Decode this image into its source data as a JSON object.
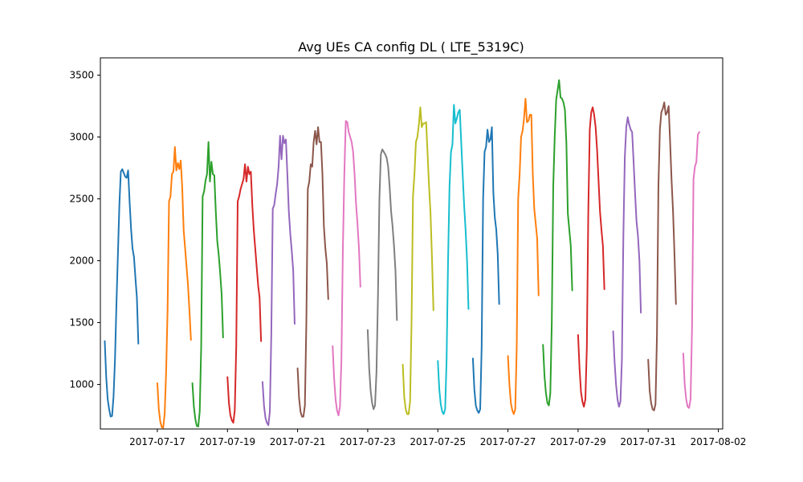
{
  "chart_data": {
    "type": "line",
    "title": "Avg UEs CA config DL ( LTE_5319C)",
    "xlabel": "",
    "ylabel": "",
    "xlim": [
      "2017-07-15T09:00",
      "2017-08-02T03:00"
    ],
    "ylim": [
      640,
      3640
    ],
    "grid": false,
    "x_ticks": [
      "2017-07-17",
      "2017-07-19",
      "2017-07-21",
      "2017-07-23",
      "2017-07-25",
      "2017-07-27",
      "2017-07-29",
      "2017-07-31",
      "2017-08-02"
    ],
    "y_ticks": [
      1000,
      1500,
      2000,
      2500,
      3000,
      3500
    ],
    "series": [
      {
        "color": "#1f77b4",
        "start": "2017-07-15T12:00",
        "values": [
          1350,
          1060,
          880,
          800,
          740,
          745,
          900,
          1200,
          1650,
          2050,
          2450,
          2720,
          2740,
          2710,
          2680,
          2670,
          2730,
          2480,
          2260,
          2100,
          2030,
          1860,
          1700,
          1330
        ]
      },
      {
        "color": "#ff7f0e",
        "start": "2017-07-17T00:00",
        "values": [
          1010,
          800,
          700,
          655,
          650,
          760,
          1100,
          1600,
          2480,
          2520,
          2700,
          2720,
          2920,
          2730,
          2790,
          2740,
          2810,
          2600,
          2250,
          2100,
          1950,
          1800,
          1590,
          1360
        ]
      },
      {
        "color": "#2ca02c",
        "start": "2017-07-18T00:00",
        "values": [
          1010,
          820,
          720,
          665,
          660,
          780,
          1300,
          2520,
          2560,
          2650,
          2700,
          2960,
          2640,
          2800,
          2700,
          2690,
          2400,
          2160,
          2050,
          1900,
          1730,
          1380
        ]
      },
      {
        "color": "#d62728",
        "start": "2017-07-19T00:00",
        "values": [
          1060,
          850,
          750,
          710,
          690,
          790,
          1300,
          2480,
          2520,
          2580,
          2620,
          2660,
          2780,
          2640,
          2760,
          2700,
          2720,
          2450,
          2250,
          2100,
          1950,
          1800,
          1700,
          1350
        ]
      },
      {
        "color": "#9467bd",
        "start": "2017-07-20T00:00",
        "values": [
          1020,
          830,
          730,
          690,
          670,
          780,
          1400,
          2420,
          2450,
          2540,
          2620,
          2760,
          3010,
          2820,
          3010,
          2950,
          2980,
          2700,
          2400,
          2220,
          2080,
          1920,
          1490
        ]
      },
      {
        "color": "#8c564b",
        "start": "2017-07-21T00:00",
        "values": [
          1130,
          890,
          780,
          740,
          740,
          830,
          1500,
          2580,
          2640,
          2780,
          2760,
          2960,
          3050,
          2940,
          3080,
          2960,
          2960,
          2700,
          2280,
          2100,
          1980,
          1690
        ]
      },
      {
        "color": "#e377c2",
        "start": "2017-07-22T00:00",
        "values": [
          1310,
          1050,
          880,
          790,
          750,
          820,
          1200,
          2100,
          2700,
          3130,
          3120,
          3040,
          3000,
          2960,
          2880,
          2700,
          2460,
          2300,
          2100,
          1790
        ]
      },
      {
        "color": "#7f7f7f",
        "start": "2017-07-23T00:00",
        "values": [
          1440,
          1130,
          950,
          850,
          800,
          830,
          1100,
          1700,
          2500,
          2860,
          2900,
          2880,
          2860,
          2830,
          2760,
          2600,
          2400,
          2280,
          2120,
          1920,
          1520
        ]
      },
      {
        "color": "#bcbd22",
        "start": "2017-07-24T00:00",
        "values": [
          1160,
          900,
          800,
          760,
          760,
          860,
          1500,
          2520,
          2700,
          2960,
          3000,
          3100,
          3240,
          3080,
          3110,
          3110,
          3120,
          2860,
          2600,
          2380,
          2020,
          1600
        ]
      },
      {
        "color": "#17becf",
        "start": "2017-07-25T00:00",
        "values": [
          1190,
          960,
          840,
          780,
          760,
          800,
          1200,
          2000,
          2600,
          2880,
          2940,
          3260,
          3110,
          3150,
          3200,
          3220,
          2960,
          2700,
          2450,
          2250,
          2000,
          1610
        ]
      },
      {
        "color": "#1f77b4",
        "start": "2017-07-26T00:00",
        "values": [
          1210,
          960,
          830,
          790,
          770,
          800,
          1300,
          2500,
          2880,
          2920,
          3060,
          2960,
          2980,
          3080,
          2550,
          2350,
          2250,
          2050,
          1650
        ]
      },
      {
        "color": "#ff7f0e",
        "start": "2017-07-27T00:00",
        "values": [
          1230,
          1000,
          850,
          790,
          760,
          800,
          1300,
          2500,
          2700,
          3000,
          3050,
          3150,
          3310,
          3120,
          3130,
          3180,
          3180,
          2700,
          2420,
          2300,
          2180,
          1720
        ]
      },
      {
        "color": "#2ca02c",
        "start": "2017-07-28T00:00",
        "values": [
          1320,
          1070,
          930,
          850,
          830,
          930,
          1500,
          2600,
          3000,
          3300,
          3380,
          3460,
          3320,
          3310,
          3280,
          3220,
          2950,
          2380,
          2250,
          2120,
          1760
        ]
      },
      {
        "color": "#d62728",
        "start": "2017-07-29T00:00",
        "values": [
          1400,
          1130,
          940,
          860,
          820,
          880,
          1300,
          2400,
          3060,
          3200,
          3240,
          3180,
          3080,
          2900,
          2650,
          2400,
          2250,
          2120,
          1770
        ]
      },
      {
        "color": "#9467bd",
        "start": "2017-07-30T00:00",
        "values": [
          1430,
          1180,
          1000,
          880,
          820,
          860,
          1200,
          2200,
          2840,
          3080,
          3160,
          3100,
          3060,
          3040,
          2800,
          2550,
          2320,
          2200,
          2000,
          1580
        ]
      },
      {
        "color": "#8c564b",
        "start": "2017-07-31T00:00",
        "values": [
          1200,
          950,
          850,
          800,
          790,
          840,
          1400,
          2600,
          3060,
          3200,
          3230,
          3280,
          3180,
          3200,
          3250,
          2960,
          2650,
          2400,
          2050,
          1650
        ]
      },
      {
        "color": "#e377c2",
        "start": "2017-08-01T00:00",
        "values": [
          1250,
          1000,
          880,
          820,
          810,
          880,
          1450,
          2660,
          2760,
          2800,
          3020,
          3040
        ]
      }
    ]
  }
}
